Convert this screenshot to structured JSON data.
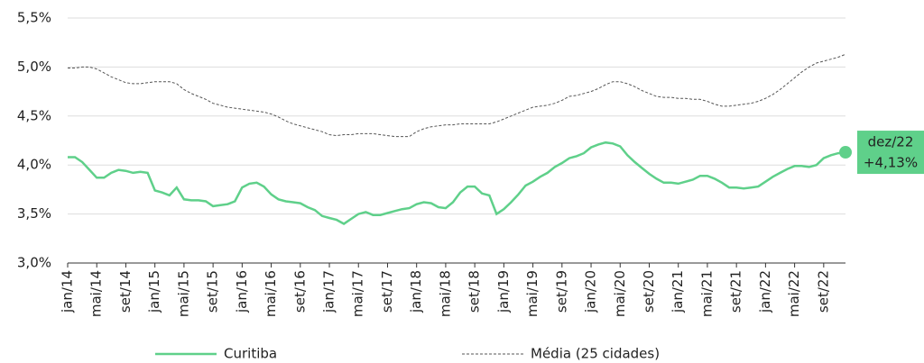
{
  "chart_data": {
    "type": "line",
    "categories": [
      "jan/14",
      null,
      null,
      null,
      "mai/14",
      null,
      null,
      null,
      "set/14",
      null,
      null,
      null,
      "jan/15",
      null,
      null,
      null,
      "mai/15",
      null,
      null,
      null,
      "set/15",
      null,
      null,
      null,
      "jan/16",
      null,
      null,
      null,
      "mai/16",
      null,
      null,
      null,
      "set/16",
      null,
      null,
      null,
      "jan/17",
      null,
      null,
      null,
      "mai/17",
      null,
      null,
      null,
      "set/17",
      null,
      null,
      null,
      "jan/18",
      null,
      null,
      null,
      "mai/18",
      null,
      null,
      null,
      "set/18",
      null,
      null,
      null,
      "jan/19",
      null,
      null,
      null,
      "mai/19",
      null,
      null,
      null,
      "set/19",
      null,
      null,
      null,
      "jan/20",
      null,
      null,
      null,
      "mai/20",
      null,
      null,
      null,
      "set/20",
      null,
      null,
      null,
      "jan/21",
      null,
      null,
      null,
      "mai/21",
      null,
      null,
      null,
      "set/21",
      null,
      null,
      null,
      "jan/22",
      null,
      null,
      null,
      "mai/22",
      null,
      null,
      null,
      "set/22",
      null,
      null,
      null
    ],
    "series": [
      {
        "name": "Curitiba",
        "color": "#5fd08a",
        "dash": false,
        "values": [
          4.08,
          4.08,
          4.03,
          3.95,
          3.87,
          3.87,
          3.92,
          3.95,
          3.94,
          3.92,
          3.93,
          3.92,
          3.74,
          3.72,
          3.69,
          3.77,
          3.65,
          3.64,
          3.64,
          3.63,
          3.58,
          3.59,
          3.6,
          3.63,
          3.77,
          3.81,
          3.82,
          3.78,
          3.7,
          3.65,
          3.63,
          3.62,
          3.61,
          3.57,
          3.54,
          3.48,
          3.46,
          3.44,
          3.4,
          3.45,
          3.5,
          3.52,
          3.49,
          3.49,
          3.51,
          3.53,
          3.55,
          3.56,
          3.6,
          3.62,
          3.61,
          3.57,
          3.56,
          3.62,
          3.72,
          3.78,
          3.78,
          3.71,
          3.69,
          3.5,
          3.55,
          3.62,
          3.7,
          3.79,
          3.83,
          3.88,
          3.92,
          3.98,
          4.02,
          4.07,
          4.09,
          4.12,
          4.18,
          4.21,
          4.23,
          4.22,
          4.19,
          4.1,
          4.03,
          3.97,
          3.91,
          3.86,
          3.82,
          3.82,
          3.81,
          3.83,
          3.85,
          3.89,
          3.89,
          3.86,
          3.82,
          3.77,
          3.77,
          3.76,
          3.77,
          3.78,
          3.83,
          3.88,
          3.92,
          3.96,
          3.99,
          3.99,
          3.98,
          4.0,
          4.07,
          4.1,
          4.12,
          4.13
        ],
        "value_labels": [
          null,
          null,
          null,
          null,
          null,
          null,
          null,
          null,
          null,
          null,
          null,
          null,
          null,
          null,
          null,
          null,
          null,
          null,
          null,
          null,
          null,
          null,
          null,
          null,
          null,
          null,
          null,
          null,
          null,
          null,
          null,
          null,
          null,
          null,
          null,
          null,
          null,
          null,
          null,
          null,
          null,
          null,
          null,
          null,
          null,
          null,
          null,
          null,
          null,
          null,
          null,
          null,
          null,
          null,
          null,
          null,
          null,
          null,
          null,
          null,
          null,
          null,
          null,
          null,
          null,
          null,
          null,
          null,
          null,
          null,
          null,
          null,
          null,
          null,
          null,
          null,
          null,
          null,
          null,
          null,
          null,
          null,
          null,
          null,
          null,
          null,
          null,
          null,
          null,
          null,
          null,
          null,
          null,
          null,
          null,
          null,
          null,
          null,
          null,
          null,
          null,
          null,
          null,
          null,
          null,
          null,
          null,
          "+4,13%"
        ]
      },
      {
        "name": "Média (25 cidades)",
        "color": "#555555",
        "dash": true,
        "values": [
          4.99,
          4.99,
          5.0,
          5.0,
          4.98,
          4.94,
          4.9,
          4.87,
          4.84,
          4.83,
          4.83,
          4.84,
          4.85,
          4.85,
          4.85,
          4.83,
          4.77,
          4.73,
          4.7,
          4.67,
          4.63,
          4.61,
          4.59,
          4.58,
          4.57,
          4.56,
          4.55,
          4.54,
          4.52,
          4.49,
          4.45,
          4.42,
          4.4,
          4.38,
          4.36,
          4.34,
          4.31,
          4.3,
          4.31,
          4.31,
          4.32,
          4.32,
          4.32,
          4.31,
          4.3,
          4.29,
          4.29,
          4.29,
          4.34,
          4.37,
          4.39,
          4.4,
          4.41,
          4.41,
          4.42,
          4.42,
          4.42,
          4.42,
          4.42,
          4.44,
          4.47,
          4.5,
          4.53,
          4.56,
          4.59,
          4.6,
          4.61,
          4.63,
          4.66,
          4.7,
          4.71,
          4.73,
          4.75,
          4.78,
          4.82,
          4.85,
          4.85,
          4.83,
          4.8,
          4.76,
          4.73,
          4.7,
          4.69,
          4.69,
          4.68,
          4.68,
          4.67,
          4.67,
          4.65,
          4.62,
          4.6,
          4.6,
          4.61,
          4.62,
          4.63,
          4.65,
          4.68,
          4.72,
          4.77,
          4.83,
          4.89,
          4.95,
          5.0,
          5.04,
          5.06,
          5.08,
          5.1,
          5.13
        ]
      }
    ],
    "annotation": "dez/22",
    "ylim": [
      3.0,
      5.5
    ],
    "yticks": [
      {
        "value": 3.0,
        "label": "3,0%"
      },
      {
        "value": 3.5,
        "label": "3,5%"
      },
      {
        "value": 4.0,
        "label": "4,0%"
      },
      {
        "value": 4.5,
        "label": "4,5%"
      },
      {
        "value": 5.0,
        "label": "5,0%"
      },
      {
        "value": 5.5,
        "label": "5,5%"
      }
    ],
    "grid": true
  }
}
